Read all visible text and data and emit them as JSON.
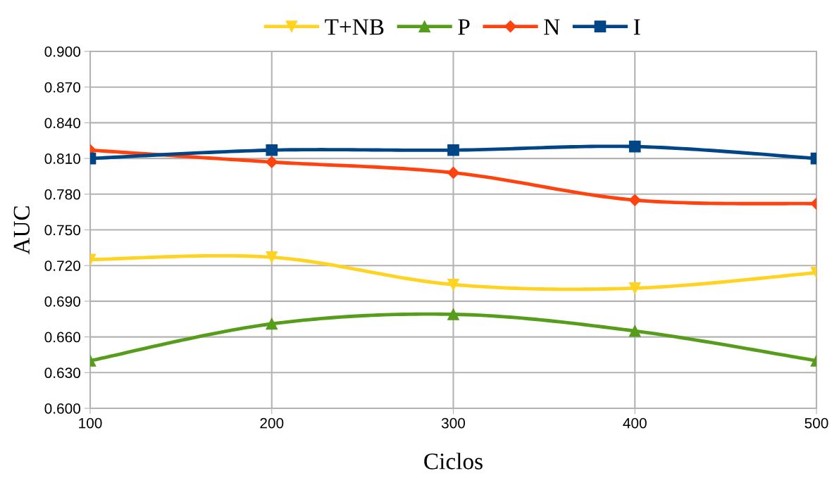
{
  "chart_data": {
    "type": "line",
    "xlabel": "Ciclos",
    "ylabel": "AUC",
    "x": [
      100,
      200,
      300,
      400,
      500
    ],
    "series": [
      {
        "name": "T+NB",
        "color": "#ffd320",
        "marker": "triangle_down",
        "values": [
          0.725,
          0.727,
          0.704,
          0.701,
          0.714
        ]
      },
      {
        "name": "P",
        "color": "#579d1c",
        "marker": "triangle",
        "values": [
          0.64,
          0.671,
          0.679,
          0.665,
          0.64
        ]
      },
      {
        "name": "N",
        "color": "#ff420e",
        "marker": "diamond",
        "values": [
          0.817,
          0.807,
          0.798,
          0.775,
          0.772
        ]
      },
      {
        "name": "I",
        "color": "#004586",
        "marker": "square",
        "values": [
          0.81,
          0.817,
          0.817,
          0.82,
          0.81
        ]
      }
    ],
    "xlim": [
      100,
      500
    ],
    "xticks": [
      100,
      200,
      300,
      400,
      500
    ],
    "ylim": [
      0.6,
      0.9
    ],
    "yticks": [
      {
        "value": 0.6,
        "label": "0.600"
      },
      {
        "value": 0.63,
        "label": "0.630"
      },
      {
        "value": 0.66,
        "label": "0.660"
      },
      {
        "value": 0.69,
        "label": "0.690"
      },
      {
        "value": 0.72,
        "label": "0.720"
      },
      {
        "value": 0.75,
        "label": "0.750"
      },
      {
        "value": 0.78,
        "label": "0.780"
      },
      {
        "value": 0.81,
        "label": "0.810"
      },
      {
        "value": 0.84,
        "label": "0.840"
      },
      {
        "value": 0.87,
        "label": "0.870"
      },
      {
        "value": 0.9,
        "label": "0.900"
      }
    ],
    "grid": true,
    "legend": "top",
    "line_style": "solid"
  }
}
